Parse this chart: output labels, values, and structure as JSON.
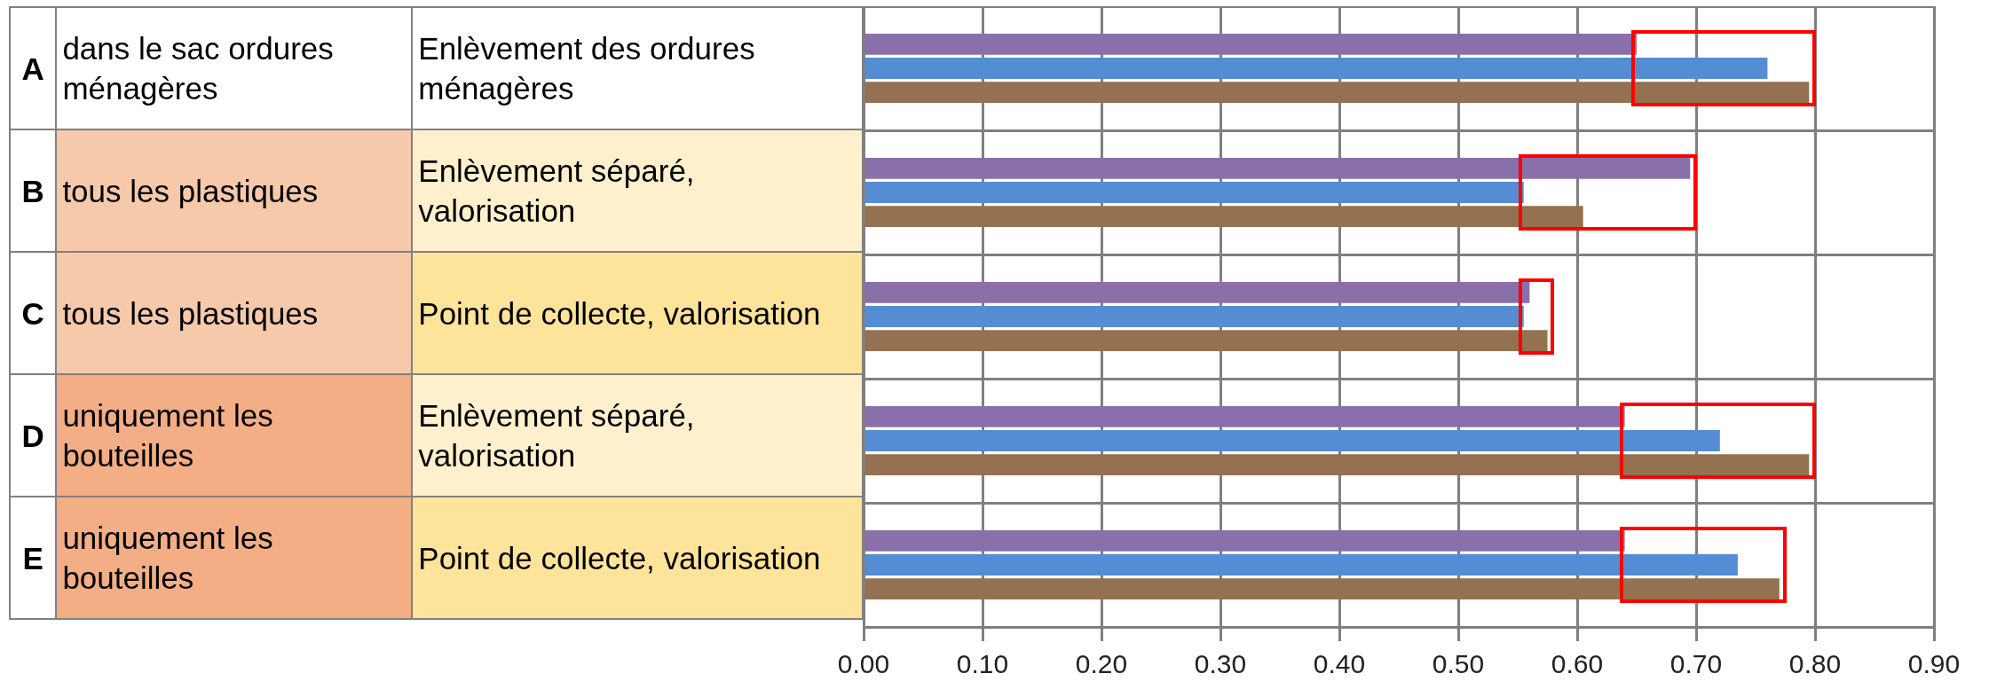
{
  "chart_data": {
    "type": "bar",
    "orientation": "horizontal",
    "categories": [
      null,
      null,
      null,
      null,
      null
    ],
    "series": [
      {
        "color": "#8a70aa",
        "values": [
          0.65,
          0.695,
          0.56,
          0.64,
          0.64
        ]
      },
      {
        "color": "#548dd4",
        "values": [
          0.76,
          0.555,
          0.555,
          0.72,
          0.735
        ]
      },
      {
        "color": "#947150",
        "values": [
          0.795,
          0.605,
          0.575,
          0.795,
          0.77
        ]
      }
    ],
    "xlim": [
      0,
      0.9
    ],
    "xticks": [
      {
        "value": 0,
        "label": "0.00"
      },
      {
        "value": 0.1,
        "label": "0.10"
      },
      {
        "value": 0.2,
        "label": "0.20"
      },
      {
        "value": 0.3,
        "label": "0.30"
      },
      {
        "value": 0.4,
        "label": "0.40"
      },
      {
        "value": 0.5,
        "label": "0.50"
      },
      {
        "value": 0.6,
        "label": "0.60"
      },
      {
        "value": 0.7,
        "label": "0.70"
      },
      {
        "value": 0.8,
        "label": "0.80"
      },
      {
        "value": 0.9,
        "label": "0.90"
      }
    ],
    "grid": "x",
    "legend": false,
    "tick_labels": "x",
    "annotations": [
      "A",
      "dans le sac ordures ménagères",
      "Enlèvement des ordures ménagères",
      "B",
      "tous les plastiques",
      "Enlèvement séparé, valorisation",
      "C",
      "tous les plastiques",
      "Point de collecte, valorisation",
      "D",
      "uniquement les bouteilles",
      "Enlèvement séparé, valorisation",
      "E",
      "uniquement les bouteilles",
      "Point de collecte, valorisation"
    ]
  }
}
